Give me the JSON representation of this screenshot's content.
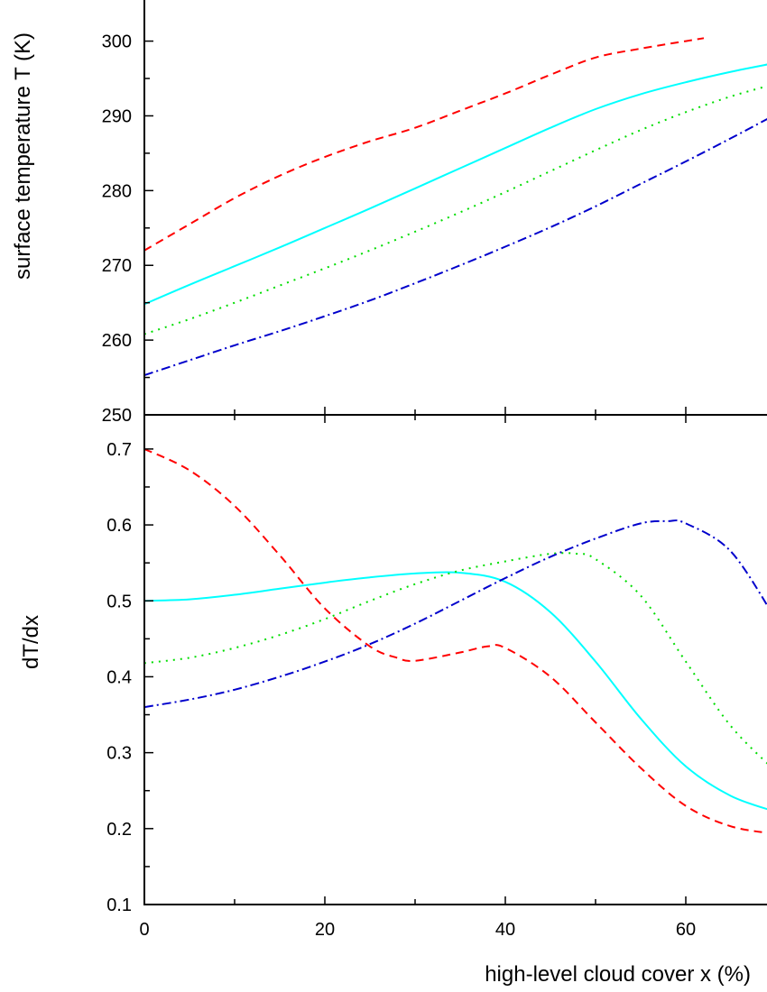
{
  "chart_data": [
    {
      "type": "line",
      "panel": "top",
      "ylabel": "surface temperature T (K)",
      "xlabel": "",
      "xlim": [
        0,
        70
      ],
      "ylim": [
        250,
        300
      ],
      "yticks": [
        250,
        260,
        270,
        280,
        290,
        300
      ],
      "ytick_labels": [
        "250",
        "260",
        "270",
        "280",
        "290",
        "300"
      ],
      "xticks": [
        0,
        20,
        40,
        60
      ],
      "grid": false,
      "series": [
        {
          "style": "dashed",
          "color": "#ff0000",
          "x": [
            0,
            5,
            10,
            15,
            20,
            25,
            30,
            35,
            40,
            45,
            50,
            55,
            60,
            62
          ],
          "y": [
            272,
            275.5,
            279,
            282,
            284.5,
            286.6,
            288.4,
            290.7,
            293,
            295.5,
            297.8,
            299,
            300,
            300.4
          ]
        },
        {
          "style": "solid",
          "color": "#00ffff",
          "x": [
            0,
            5,
            10,
            15,
            20,
            25,
            30,
            35,
            40,
            45,
            50,
            55,
            60,
            65,
            70
          ],
          "y": [
            264.8,
            267.4,
            269.9,
            272.4,
            275,
            277.6,
            280.3,
            283,
            285.7,
            288.4,
            290.9,
            292.9,
            294.5,
            295.9,
            297.1
          ]
        },
        {
          "style": "dotted",
          "color": "#00dd00",
          "x": [
            0,
            5,
            10,
            15,
            20,
            25,
            30,
            35,
            40,
            45,
            50,
            55,
            60,
            65,
            70
          ],
          "y": [
            260.8,
            262.8,
            265,
            267.3,
            269.6,
            272,
            274.5,
            277.1,
            279.8,
            282.6,
            285.4,
            288.1,
            290.5,
            292.6,
            294.3
          ]
        },
        {
          "style": "dashdot",
          "color": "#0000cc",
          "x": [
            0,
            5,
            10,
            15,
            20,
            25,
            30,
            35,
            40,
            45,
            50,
            55,
            60,
            65,
            70
          ],
          "y": [
            255.3,
            257.3,
            259.3,
            261.2,
            263.2,
            265.3,
            267.6,
            270,
            272.5,
            275.1,
            277.9,
            280.9,
            283.9,
            287,
            290.2
          ]
        }
      ]
    },
    {
      "type": "line",
      "panel": "bottom",
      "ylabel": "dT/dx",
      "xlabel": "high-level cloud cover x (%)",
      "xlim": [
        0,
        70
      ],
      "ylim": [
        0.1,
        0.75
      ],
      "xticks": [
        0,
        20,
        40,
        60
      ],
      "xtick_labels": [
        "0",
        "20",
        "40",
        "60"
      ],
      "yticks": [
        0.1,
        0.2,
        0.3,
        0.4,
        0.5,
        0.6,
        0.7
      ],
      "ytick_labels": [
        "0.1",
        "0.2",
        "0.3",
        "0.4",
        "0.5",
        "0.6",
        "0.7"
      ],
      "grid": false,
      "series": [
        {
          "style": "dashed",
          "color": "#ff0000",
          "x": [
            0,
            5,
            10,
            15,
            20,
            25,
            28,
            30,
            35,
            38,
            40,
            45,
            50,
            55,
            60,
            65,
            70
          ],
          "y": [
            0.7,
            0.672,
            0.625,
            0.56,
            0.49,
            0.44,
            0.425,
            0.421,
            0.432,
            0.44,
            0.438,
            0.4,
            0.34,
            0.28,
            0.23,
            0.203,
            0.193
          ]
        },
        {
          "style": "solid",
          "color": "#00ffff",
          "x": [
            0,
            5,
            10,
            15,
            20,
            25,
            30,
            35,
            40,
            45,
            50,
            55,
            60,
            65,
            70
          ],
          "y": [
            0.5,
            0.502,
            0.508,
            0.516,
            0.524,
            0.531,
            0.536,
            0.537,
            0.525,
            0.485,
            0.42,
            0.345,
            0.282,
            0.243,
            0.222
          ]
        },
        {
          "style": "dotted",
          "color": "#00dd00",
          "x": [
            0,
            5,
            10,
            15,
            20,
            25,
            30,
            35,
            40,
            45,
            48,
            50,
            55,
            60,
            65,
            70
          ],
          "y": [
            0.418,
            0.425,
            0.438,
            0.455,
            0.476,
            0.5,
            0.522,
            0.54,
            0.552,
            0.562,
            0.562,
            0.555,
            0.507,
            0.42,
            0.335,
            0.275
          ]
        },
        {
          "style": "dashdot",
          "color": "#0000cc",
          "x": [
            0,
            5,
            10,
            15,
            20,
            25,
            30,
            35,
            40,
            45,
            50,
            55,
            58,
            60,
            65,
            70
          ],
          "y": [
            0.36,
            0.37,
            0.383,
            0.4,
            0.42,
            0.443,
            0.47,
            0.5,
            0.53,
            0.558,
            0.582,
            0.602,
            0.605,
            0.602,
            0.565,
            0.475
          ]
        }
      ]
    }
  ]
}
